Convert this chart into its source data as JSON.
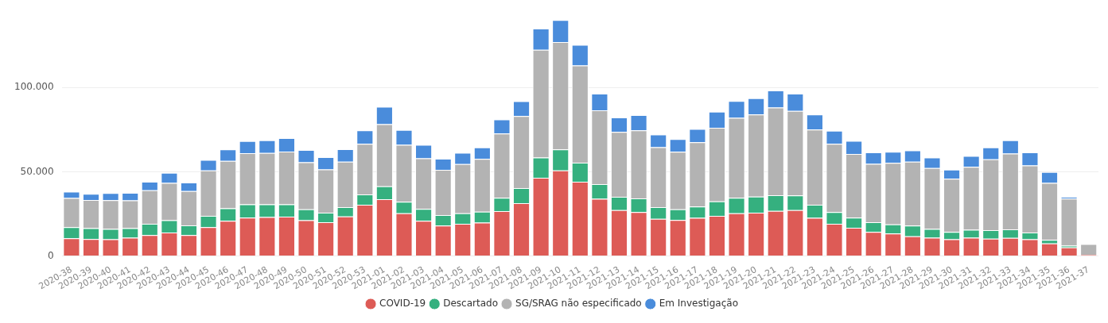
{
  "chart_data": {
    "type": "bar",
    "stacked": true,
    "categories": [
      "2020-38",
      "2020-39",
      "2020-40",
      "2020-41",
      "2020-42",
      "2020-43",
      "2020-44",
      "2020-45",
      "2020-46",
      "2020-47",
      "2020-48",
      "2020-49",
      "2020-50",
      "2020-51",
      "2020-52",
      "2020-53",
      "2021-01",
      "2021-02",
      "2021-03",
      "2021-04",
      "2021-05",
      "2021-06",
      "2021-07",
      "2021-08",
      "2021-09",
      "2021-10",
      "2021-11",
      "2021-12",
      "2021-13",
      "2021-14",
      "2021-15",
      "2021-16",
      "2021-17",
      "2021-18",
      "2021-19",
      "2021-20",
      "2021-21",
      "2021-22",
      "2021-23",
      "2021-24",
      "2021-25",
      "2021-26",
      "2021-27",
      "2021-28",
      "2021-29",
      "2021-30",
      "2021-31",
      "2021-32",
      "2021-33",
      "2021-34",
      "2021-35",
      "2021-36",
      "2021-37"
    ],
    "series": [
      {
        "name": "COVID-19",
        "color": "#dd5b56",
        "values": [
          10500,
          10000,
          9900,
          10900,
          12400,
          13900,
          12400,
          17100,
          20900,
          22800,
          23100,
          23300,
          21200,
          20100,
          23500,
          30400,
          33700,
          25300,
          20900,
          18100,
          19100,
          19800,
          26600,
          31300,
          46400,
          50800,
          44100,
          33900,
          27200,
          26000,
          22100,
          21400,
          22600,
          23800,
          25300,
          25700,
          26700,
          27200,
          22600,
          19100,
          16800,
          14300,
          13300,
          11700,
          10900,
          9900,
          10900,
          10300,
          10700,
          9900,
          7500,
          5100,
          800
        ]
      },
      {
        "name": "Descartado",
        "color": "#35b07f",
        "values": [
          6600,
          6500,
          6100,
          5600,
          6700,
          7300,
          5800,
          6700,
          7400,
          7800,
          7500,
          7300,
          6500,
          5600,
          5500,
          6100,
          7700,
          6900,
          7000,
          6200,
          6200,
          6500,
          7900,
          9000,
          12000,
          12400,
          11300,
          8700,
          7900,
          8200,
          6900,
          6300,
          6800,
          8600,
          9200,
          9500,
          9400,
          8700,
          7800,
          6900,
          6000,
          5800,
          5500,
          6400,
          5100,
          4400,
          4700,
          5100,
          5100,
          4000,
          2100,
          1100,
          0
        ]
      },
      {
        "name": "SG/SRAG não especificado",
        "color": "#b3b3b3",
        "values": [
          17300,
          16700,
          17100,
          16500,
          19900,
          22100,
          20300,
          27000,
          28100,
          30400,
          30500,
          31400,
          27900,
          25600,
          26900,
          30000,
          36800,
          33700,
          30100,
          26800,
          29200,
          31300,
          38200,
          42700,
          63900,
          63700,
          57600,
          43800,
          38500,
          40300,
          35500,
          34100,
          38100,
          43700,
          47500,
          48800,
          52000,
          50200,
          44600,
          40500,
          37700,
          34600,
          36400,
          37800,
          36200,
          31500,
          37300,
          41900,
          45000,
          39800,
          33800,
          27900,
          6300
        ]
      },
      {
        "name": "Em Investigação",
        "color": "#4a8cdb",
        "values": [
          3800,
          3700,
          4200,
          4500,
          5100,
          6100,
          5100,
          6200,
          6800,
          7200,
          7600,
          7900,
          7300,
          7300,
          7500,
          8000,
          10300,
          8900,
          7900,
          6600,
          6700,
          6800,
          8300,
          8800,
          12600,
          13100,
          12300,
          9900,
          8600,
          9100,
          7600,
          7600,
          7900,
          9500,
          9900,
          9600,
          10100,
          10200,
          9000,
          7800,
          7800,
          6800,
          6600,
          6800,
          6200,
          5400,
          6500,
          7100,
          7900,
          7800,
          6400,
          1000,
          0
        ]
      }
    ],
    "ylim": [
      0,
      140000
    ],
    "yticks": [
      {
        "value": 0,
        "label": "0"
      },
      {
        "value": 50000,
        "label": "50.000"
      },
      {
        "value": 100000,
        "label": "100.000"
      }
    ],
    "grid": "y",
    "legend": "bottom"
  }
}
